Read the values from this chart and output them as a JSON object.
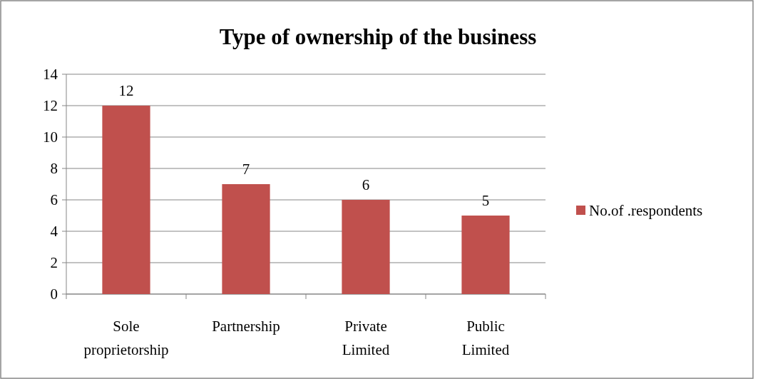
{
  "chart_data": {
    "type": "bar",
    "title": "Type of ownership of the business",
    "categories": [
      "Sole proprietorship",
      "Partnership",
      "Private Limited",
      "Public Limited"
    ],
    "series": [
      {
        "name": "No.of .respondents",
        "color": "#c0504d",
        "values": [
          12,
          7,
          6,
          5
        ]
      }
    ],
    "ylim": [
      0,
      14
    ],
    "yticks": [
      0,
      2,
      4,
      6,
      8,
      10,
      12,
      14
    ],
    "grid": "y",
    "legend": "right",
    "data_labels": true
  }
}
